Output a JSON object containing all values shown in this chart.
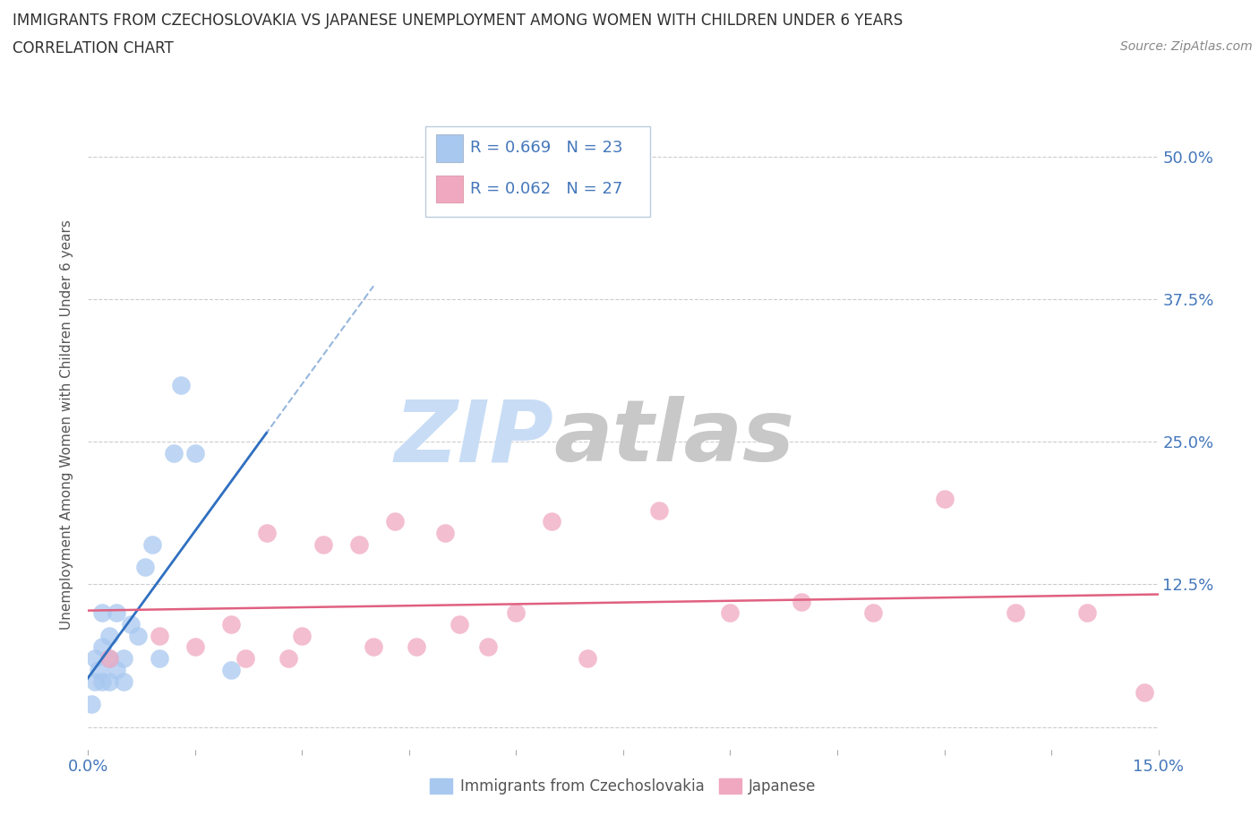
{
  "title_line1": "IMMIGRANTS FROM CZECHOSLOVAKIA VS JAPANESE UNEMPLOYMENT AMONG WOMEN WITH CHILDREN UNDER 6 YEARS",
  "title_line2": "CORRELATION CHART",
  "source": "Source: ZipAtlas.com",
  "ylabel": "Unemployment Among Women with Children Under 6 years",
  "xlim": [
    0.0,
    0.15
  ],
  "ylim": [
    -0.02,
    0.55
  ],
  "xticks": [
    0.0,
    0.015,
    0.03,
    0.045,
    0.06,
    0.075,
    0.09,
    0.105,
    0.12,
    0.135,
    0.15
  ],
  "xtick_labels_show": [
    "0.0%",
    "15.0%"
  ],
  "yticks": [
    0.0,
    0.125,
    0.25,
    0.375,
    0.5
  ],
  "ytick_labels": [
    "",
    "12.5%",
    "25.0%",
    "37.5%",
    "50.0%"
  ],
  "legend_entries": [
    {
      "label": "Immigrants from Czechoslovakia",
      "color": "#a8c8f0",
      "R": "0.669",
      "N": 23
    },
    {
      "label": "Japanese",
      "color": "#f0a8c0",
      "R": "0.062",
      "N": 27
    }
  ],
  "czech_x": [
    0.0005,
    0.001,
    0.001,
    0.0015,
    0.002,
    0.002,
    0.002,
    0.003,
    0.003,
    0.003,
    0.004,
    0.004,
    0.005,
    0.005,
    0.006,
    0.007,
    0.008,
    0.009,
    0.01,
    0.012,
    0.013,
    0.015,
    0.02
  ],
  "czech_y": [
    0.02,
    0.04,
    0.06,
    0.05,
    0.04,
    0.07,
    0.1,
    0.04,
    0.06,
    0.08,
    0.05,
    0.1,
    0.04,
    0.06,
    0.09,
    0.08,
    0.14,
    0.16,
    0.06,
    0.24,
    0.3,
    0.24,
    0.05
  ],
  "japanese_x": [
    0.003,
    0.01,
    0.015,
    0.02,
    0.022,
    0.025,
    0.028,
    0.03,
    0.033,
    0.038,
    0.04,
    0.043,
    0.046,
    0.05,
    0.052,
    0.056,
    0.06,
    0.065,
    0.07,
    0.08,
    0.09,
    0.1,
    0.11,
    0.12,
    0.13,
    0.14,
    0.148
  ],
  "japanese_y": [
    0.06,
    0.08,
    0.07,
    0.09,
    0.06,
    0.17,
    0.06,
    0.08,
    0.16,
    0.16,
    0.07,
    0.18,
    0.07,
    0.17,
    0.09,
    0.07,
    0.1,
    0.18,
    0.06,
    0.19,
    0.1,
    0.11,
    0.1,
    0.2,
    0.1,
    0.1,
    0.03
  ],
  "czech_line_color": "#3070c0",
  "japanese_line_color": "#e06080",
  "czech_scatter_color": "#a8c8f0",
  "japanese_scatter_color": "#f0a8c0",
  "background_color": "#ffffff",
  "grid_color": "#cccccc",
  "title_color": "#303030",
  "source_color": "#888888",
  "tick_color": "#4477bb",
  "ylabel_color": "#555555"
}
